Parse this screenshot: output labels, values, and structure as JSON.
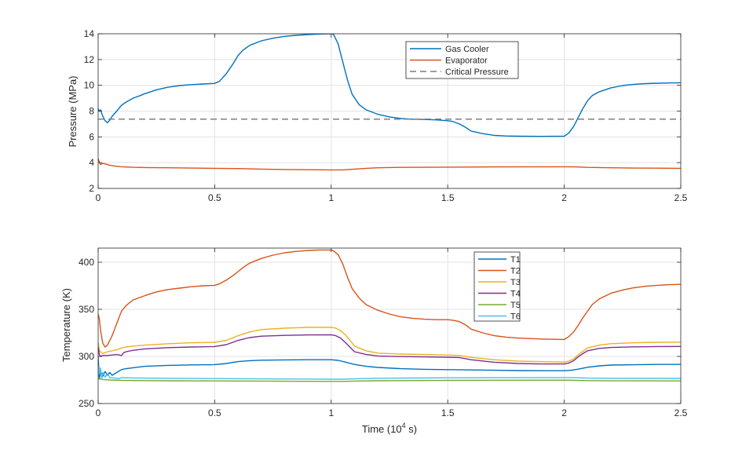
{
  "chart_data": [
    {
      "type": "line",
      "title": "",
      "xlabel": "",
      "ylabel": "Pressure (MPa)",
      "xlim": [
        0,
        2.5
      ],
      "ylim": [
        2,
        14
      ],
      "xticks": [
        0,
        0.5,
        1,
        1.5,
        2,
        2.5
      ],
      "xtick_labels": [
        "0",
        "0.5",
        "1",
        "1.5",
        "2",
        "2.5"
      ],
      "yticks": [
        2,
        4,
        6,
        8,
        10,
        12,
        14
      ],
      "ytick_labels": [
        "2",
        "4",
        "6",
        "8",
        "10",
        "12",
        "14"
      ],
      "grid": true,
      "legend": "top-center",
      "series": [
        {
          "name": "Gas Cooler",
          "color": "#0072bd",
          "dashed": false,
          "x": [
            0,
            0.004,
            0.01,
            0.02,
            0.03,
            0.04,
            0.05,
            0.06,
            0.08,
            0.1,
            0.12,
            0.15,
            0.18,
            0.2,
            0.25,
            0.3,
            0.35,
            0.4,
            0.45,
            0.5,
            0.52,
            0.55,
            0.58,
            0.6,
            0.62,
            0.65,
            0.7,
            0.75,
            0.8,
            0.85,
            0.9,
            0.95,
            1.0,
            1.01,
            1.03,
            1.05,
            1.07,
            1.09,
            1.12,
            1.15,
            1.2,
            1.25,
            1.3,
            1.35,
            1.4,
            1.45,
            1.5,
            1.52,
            1.55,
            1.58,
            1.6,
            1.65,
            1.7,
            1.75,
            1.8,
            1.9,
            2.0,
            2.02,
            2.04,
            2.06,
            2.08,
            2.1,
            2.12,
            2.15,
            2.2,
            2.25,
            2.3,
            2.35,
            2.4,
            2.45,
            2.5
          ],
          "y": [
            8.2,
            8.0,
            8.1,
            7.6,
            7.25,
            7.1,
            7.3,
            7.6,
            8.0,
            8.45,
            8.7,
            9.0,
            9.2,
            9.35,
            9.65,
            9.85,
            9.98,
            10.05,
            10.1,
            10.15,
            10.3,
            10.9,
            11.7,
            12.3,
            12.7,
            13.1,
            13.45,
            13.65,
            13.8,
            13.88,
            13.94,
            13.98,
            14.0,
            13.95,
            13.2,
            11.8,
            10.4,
            9.3,
            8.5,
            8.1,
            7.75,
            7.55,
            7.42,
            7.37,
            7.35,
            7.32,
            7.25,
            7.2,
            7.0,
            6.7,
            6.45,
            6.25,
            6.12,
            6.07,
            6.05,
            6.04,
            6.05,
            6.3,
            6.8,
            7.5,
            8.2,
            8.8,
            9.2,
            9.5,
            9.8,
            9.98,
            10.08,
            10.13,
            10.16,
            10.18,
            10.2
          ]
        },
        {
          "name": "Evaporator",
          "color": "#d95319",
          "dashed": false,
          "x": [
            0,
            0.01,
            0.02,
            0.03,
            0.05,
            0.08,
            0.1,
            0.15,
            0.2,
            0.3,
            0.4,
            0.5,
            0.6,
            0.7,
            0.8,
            0.9,
            1.0,
            1.05,
            1.1,
            1.15,
            1.2,
            1.3,
            1.5,
            1.7,
            2.0,
            2.05,
            2.1,
            2.2,
            2.3,
            2.4,
            2.5
          ],
          "y": [
            4.3,
            3.85,
            3.95,
            3.9,
            3.8,
            3.72,
            3.68,
            3.64,
            3.62,
            3.6,
            3.58,
            3.56,
            3.54,
            3.5,
            3.47,
            3.45,
            3.44,
            3.44,
            3.5,
            3.56,
            3.6,
            3.63,
            3.65,
            3.67,
            3.68,
            3.67,
            3.63,
            3.6,
            3.58,
            3.57,
            3.56
          ]
        },
        {
          "name": "Critical Pressure",
          "color": "#7f7f7f",
          "dashed": true,
          "x": [
            0,
            2.5
          ],
          "y": [
            7.38,
            7.38
          ]
        }
      ]
    },
    {
      "type": "line",
      "title": "",
      "xlabel": "Time  (10",
      "xlabel_exponent": "4",
      "xlabel_unit": " s)",
      "ylabel": "Temperature (K)",
      "xlim": [
        0,
        2.5
      ],
      "ylim": [
        250,
        415
      ],
      "xticks": [
        0,
        0.5,
        1,
        1.5,
        2,
        2.5
      ],
      "xtick_labels": [
        "0",
        "0.5",
        "1",
        "1.5",
        "2",
        "2.5"
      ],
      "yticks": [
        250,
        300,
        350,
        400
      ],
      "ytick_labels": [
        "250",
        "300",
        "350",
        "400"
      ],
      "grid": true,
      "legend": "top-center",
      "series": [
        {
          "name": "T1",
          "color": "#0072bd",
          "x": [
            0,
            0.005,
            0.01,
            0.02,
            0.03,
            0.04,
            0.05,
            0.06,
            0.08,
            0.1,
            0.12,
            0.15,
            0.2,
            0.3,
            0.4,
            0.5,
            0.55,
            0.6,
            0.65,
            0.7,
            0.8,
            0.9,
            1.0,
            1.03,
            1.06,
            1.1,
            1.15,
            1.2,
            1.3,
            1.4,
            1.5,
            1.6,
            1.7,
            1.8,
            1.9,
            2.0,
            2.03,
            2.06,
            2.1,
            2.15,
            2.2,
            2.3,
            2.4,
            2.5
          ],
          "y": [
            300,
            276,
            284,
            279,
            284,
            280,
            283,
            280,
            283,
            286,
            287,
            288,
            289.5,
            290.5,
            291,
            291.3,
            292.5,
            294.5,
            295.5,
            296,
            296.3,
            296.5,
            296.5,
            295.8,
            294,
            291.5,
            289.5,
            288.3,
            287,
            286.3,
            286,
            285.7,
            285.3,
            285,
            284.8,
            284.8,
            285.3,
            286.5,
            288.5,
            290,
            290.8,
            291.2,
            291.5,
            291.6
          ]
        },
        {
          "name": "T2",
          "color": "#d95319",
          "x": [
            0,
            0.005,
            0.01,
            0.02,
            0.03,
            0.04,
            0.06,
            0.08,
            0.1,
            0.12,
            0.15,
            0.2,
            0.25,
            0.3,
            0.35,
            0.4,
            0.45,
            0.5,
            0.52,
            0.55,
            0.58,
            0.6,
            0.62,
            0.65,
            0.7,
            0.75,
            0.8,
            0.85,
            0.9,
            0.95,
            1.0,
            1.01,
            1.03,
            1.05,
            1.07,
            1.09,
            1.12,
            1.15,
            1.2,
            1.25,
            1.3,
            1.35,
            1.4,
            1.45,
            1.5,
            1.52,
            1.55,
            1.58,
            1.6,
            1.65,
            1.7,
            1.75,
            1.8,
            1.9,
            2.0,
            2.02,
            2.04,
            2.06,
            2.08,
            2.1,
            2.12,
            2.15,
            2.2,
            2.25,
            2.3,
            2.35,
            2.4,
            2.45,
            2.5
          ],
          "y": [
            345,
            340,
            328,
            314,
            310,
            312,
            322,
            335,
            348,
            354,
            360,
            364.5,
            368.5,
            371,
            372.5,
            374,
            375,
            375.5,
            377,
            381,
            386,
            390,
            394,
            399,
            404,
            407.5,
            410,
            411.5,
            412.5,
            413,
            413,
            412,
            408,
            398,
            384,
            372,
            362,
            355,
            349,
            345,
            342,
            340.5,
            339.5,
            339,
            339,
            338.5,
            337,
            333,
            329,
            325,
            322,
            320.5,
            319.5,
            318.5,
            318,
            321,
            326,
            333,
            341,
            348,
            355,
            361,
            367,
            370.5,
            373,
            374.5,
            375.5,
            376.2,
            376.5
          ]
        },
        {
          "name": "T3",
          "color": "#edb120",
          "x": [
            0,
            0.005,
            0.01,
            0.02,
            0.03,
            0.04,
            0.06,
            0.08,
            0.1,
            0.12,
            0.15,
            0.2,
            0.3,
            0.4,
            0.5,
            0.55,
            0.6,
            0.65,
            0.7,
            0.8,
            0.9,
            1.0,
            1.02,
            1.04,
            1.06,
            1.08,
            1.1,
            1.15,
            1.2,
            1.3,
            1.4,
            1.5,
            1.55,
            1.6,
            1.7,
            1.8,
            1.9,
            2.0,
            2.02,
            2.04,
            2.06,
            2.08,
            2.1,
            2.15,
            2.2,
            2.3,
            2.4,
            2.5
          ],
          "y": [
            315,
            306,
            305,
            303,
            304,
            305,
            306,
            307,
            309,
            310,
            311,
            312,
            313.5,
            314.5,
            315,
            317,
            322,
            326,
            328.5,
            330,
            330.8,
            331,
            330,
            327.5,
            323,
            317.5,
            311,
            306,
            303.5,
            302.5,
            302,
            301.5,
            301,
            299,
            296.5,
            295,
            294.5,
            294,
            295,
            297.5,
            301.5,
            305.5,
            309,
            312,
            313.5,
            314.5,
            315,
            315.2
          ]
        },
        {
          "name": "T4",
          "color": "#7e2f8e",
          "x": [
            0,
            0.005,
            0.01,
            0.02,
            0.04,
            0.06,
            0.08,
            0.1,
            0.11,
            0.12,
            0.15,
            0.2,
            0.3,
            0.4,
            0.5,
            0.55,
            0.6,
            0.65,
            0.7,
            0.8,
            0.9,
            1.0,
            1.02,
            1.04,
            1.06,
            1.08,
            1.1,
            1.15,
            1.2,
            1.3,
            1.4,
            1.5,
            1.55,
            1.6,
            1.7,
            1.8,
            1.9,
            2.0,
            2.02,
            2.04,
            2.06,
            2.08,
            2.1,
            2.15,
            2.2,
            2.3,
            2.4,
            2.5
          ],
          "y": [
            310,
            302,
            300,
            301,
            301,
            301.5,
            302,
            301,
            304,
            305,
            306.5,
            308,
            309.3,
            310,
            310.5,
            312.5,
            317,
            320,
            321.5,
            322.3,
            322.8,
            323,
            322,
            319.5,
            315,
            310,
            305,
            302,
            300.5,
            299.8,
            299.5,
            299.2,
            298.8,
            296.5,
            293.8,
            292.5,
            292,
            292,
            293,
            295.5,
            299.5,
            303,
            306,
            308.5,
            309.5,
            310.2,
            310.5,
            310.6
          ]
        },
        {
          "name": "T5",
          "color": "#77ac30",
          "x": [
            0,
            0.02,
            0.05,
            0.1,
            0.2,
            0.3,
            0.5,
            0.7,
            0.9,
            1.0,
            1.05,
            1.1,
            1.2,
            1.5,
            2.0,
            2.05,
            2.1,
            2.2,
            2.5
          ],
          "y": [
            276.5,
            275.5,
            275,
            274.6,
            274.3,
            274.2,
            274,
            273.8,
            273.6,
            273.5,
            273.5,
            273.8,
            274.2,
            274.6,
            274.8,
            274.6,
            274.3,
            274.1,
            274
          ]
        },
        {
          "name": "T6",
          "color": "#4dbeee",
          "x": [
            0,
            0.005,
            0.01,
            0.015,
            0.02,
            0.03,
            0.04,
            0.05,
            0.07,
            0.09,
            0.1,
            0.12,
            0.15,
            0.2,
            0.3,
            0.5,
            0.7,
            0.9,
            1.0,
            1.05,
            1.1,
            1.2,
            1.5,
            2.0,
            2.05,
            2.1,
            2.2,
            2.5
          ],
          "y": [
            290,
            281,
            288,
            276,
            283,
            278,
            282,
            277.5,
            277,
            276.5,
            277.5,
            277.3,
            277.2,
            277,
            276.8,
            276.5,
            276.2,
            276,
            275.8,
            275.8,
            276.2,
            276.8,
            277.3,
            277.6,
            277.4,
            277,
            276.8,
            276.7
          ]
        }
      ]
    }
  ]
}
